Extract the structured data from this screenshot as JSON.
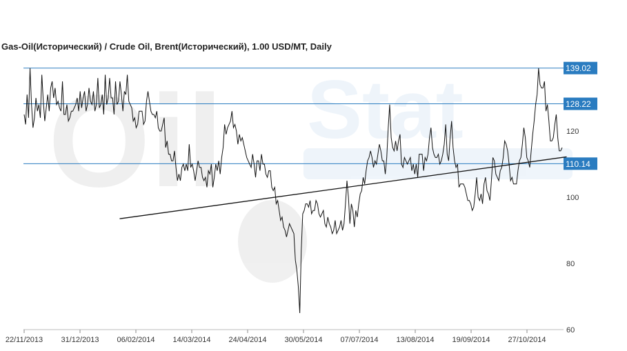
{
  "chart_data": {
    "type": "line",
    "title": "Gas-Oil(Исторический) / Crude Oil, Brent(Исторический), 1.00 USD/MT, Daily",
    "x_tick_labels": [
      "22/11/2013",
      "31/12/2013",
      "06/02/2014",
      "14/03/2014",
      "24/04/2014",
      "30/05/2014",
      "07/07/2014",
      "13/08/2014",
      "19/09/2014",
      "27/10/2014"
    ],
    "y_ticks": [
      60,
      80,
      100,
      120
    ],
    "ylim": [
      60,
      142
    ],
    "grid": false,
    "levels": [
      {
        "label": "139.02",
        "value": 139.02
      },
      {
        "label": "128.22",
        "value": 128.22
      },
      {
        "label": "110.14",
        "value": 110.14
      }
    ],
    "trendline": {
      "from": {
        "x": 1.71,
        "value": 93.5
      },
      "to": {
        "x": 9.71,
        "value": 112.2
      }
    },
    "series": [
      {
        "values": [
          125,
          122,
          131,
          124,
          139,
          128,
          121,
          124,
          130,
          126,
          128,
          124,
          137,
          129,
          123,
          127,
          131,
          126,
          133,
          135,
          130,
          133,
          128,
          129,
          127,
          126,
          135,
          125,
          125,
          128,
          123,
          124,
          126,
          126,
          127,
          128,
          130,
          126,
          132,
          127,
          130,
          132,
          126,
          128,
          133,
          129,
          128,
          132,
          126,
          128,
          136,
          127,
          128,
          131,
          125,
          137,
          128,
          130,
          136,
          130,
          130,
          125,
          135,
          128,
          129,
          135,
          131,
          126,
          132,
          131,
          137,
          129,
          128,
          127,
          123,
          124,
          121,
          122,
          126,
          126,
          126,
          122,
          123,
          129,
          132,
          129,
          126,
          125,
          125,
          124,
          126,
          121,
          120,
          120,
          122,
          124,
          115,
          117,
          113,
          113,
          111,
          111,
          114,
          109,
          105,
          107,
          105,
          109,
          110,
          108,
          110,
          108,
          116,
          109,
          110,
          108,
          105,
          108,
          111,
          109,
          109,
          106,
          105,
          106,
          103,
          108,
          107,
          110,
          103,
          106,
          110,
          108,
          111,
          107,
          112,
          115,
          122,
          119,
          121,
          122,
          123,
          126,
          121,
          122,
          120,
          116,
          119,
          117,
          118,
          116,
          114,
          112,
          111,
          110,
          109,
          113,
          110,
          106,
          111,
          111,
          108,
          113,
          110,
          110,
          107,
          106,
          108,
          108,
          103,
          102,
          103,
          98,
          99,
          96,
          93,
          94,
          91,
          90,
          88,
          90,
          92,
          91,
          90,
          89,
          81,
          78,
          73,
          65,
          84,
          95,
          96,
          98,
          98,
          97,
          99,
          95,
          96,
          96,
          99,
          98,
          95,
          94,
          95,
          96,
          92,
          91,
          94,
          92,
          91,
          89,
          90,
          93,
          89,
          90,
          91,
          93,
          90,
          92,
          98,
          105,
          100,
          92,
          98,
          96,
          91,
          96,
          94,
          98,
          101,
          102,
          106,
          104,
          108,
          111,
          112,
          114,
          112,
          109,
          111,
          110,
          113,
          116,
          114,
          111,
          111,
          107,
          112,
          121,
          128,
          118,
          115,
          114,
          117,
          114,
          117,
          119,
          110,
          109,
          112,
          111,
          110,
          111,
          112,
          108,
          110,
          107,
          110,
          106,
          113,
          113,
          113,
          108,
          112,
          111,
          113,
          118,
          121,
          115,
          113,
          112,
          112,
          113,
          110,
          111,
          113,
          116,
          122,
          113,
          111,
          118,
          123,
          115,
          111,
          109,
          110,
          103,
          104,
          104,
          104,
          103,
          101,
          99,
          99,
          98,
          96,
          97,
          101,
          106,
          100,
          99,
          101,
          98,
          104,
          106,
          102,
          101,
          99,
          105,
          112,
          111,
          107,
          106,
          105,
          108,
          109,
          112,
          117,
          116,
          114,
          110,
          105,
          106,
          104,
          104,
          104,
          108,
          111,
          112,
          116,
          121,
          118,
          112,
          111,
          109,
          114,
          119,
          123,
          128,
          131,
          139,
          134,
          133,
          133,
          135,
          126,
          128,
          123,
          117,
          117,
          118,
          122,
          125,
          118,
          114,
          114,
          115
        ]
      }
    ]
  },
  "watermark": {
    "text1": "Oil",
    "text2": "Stat"
  }
}
